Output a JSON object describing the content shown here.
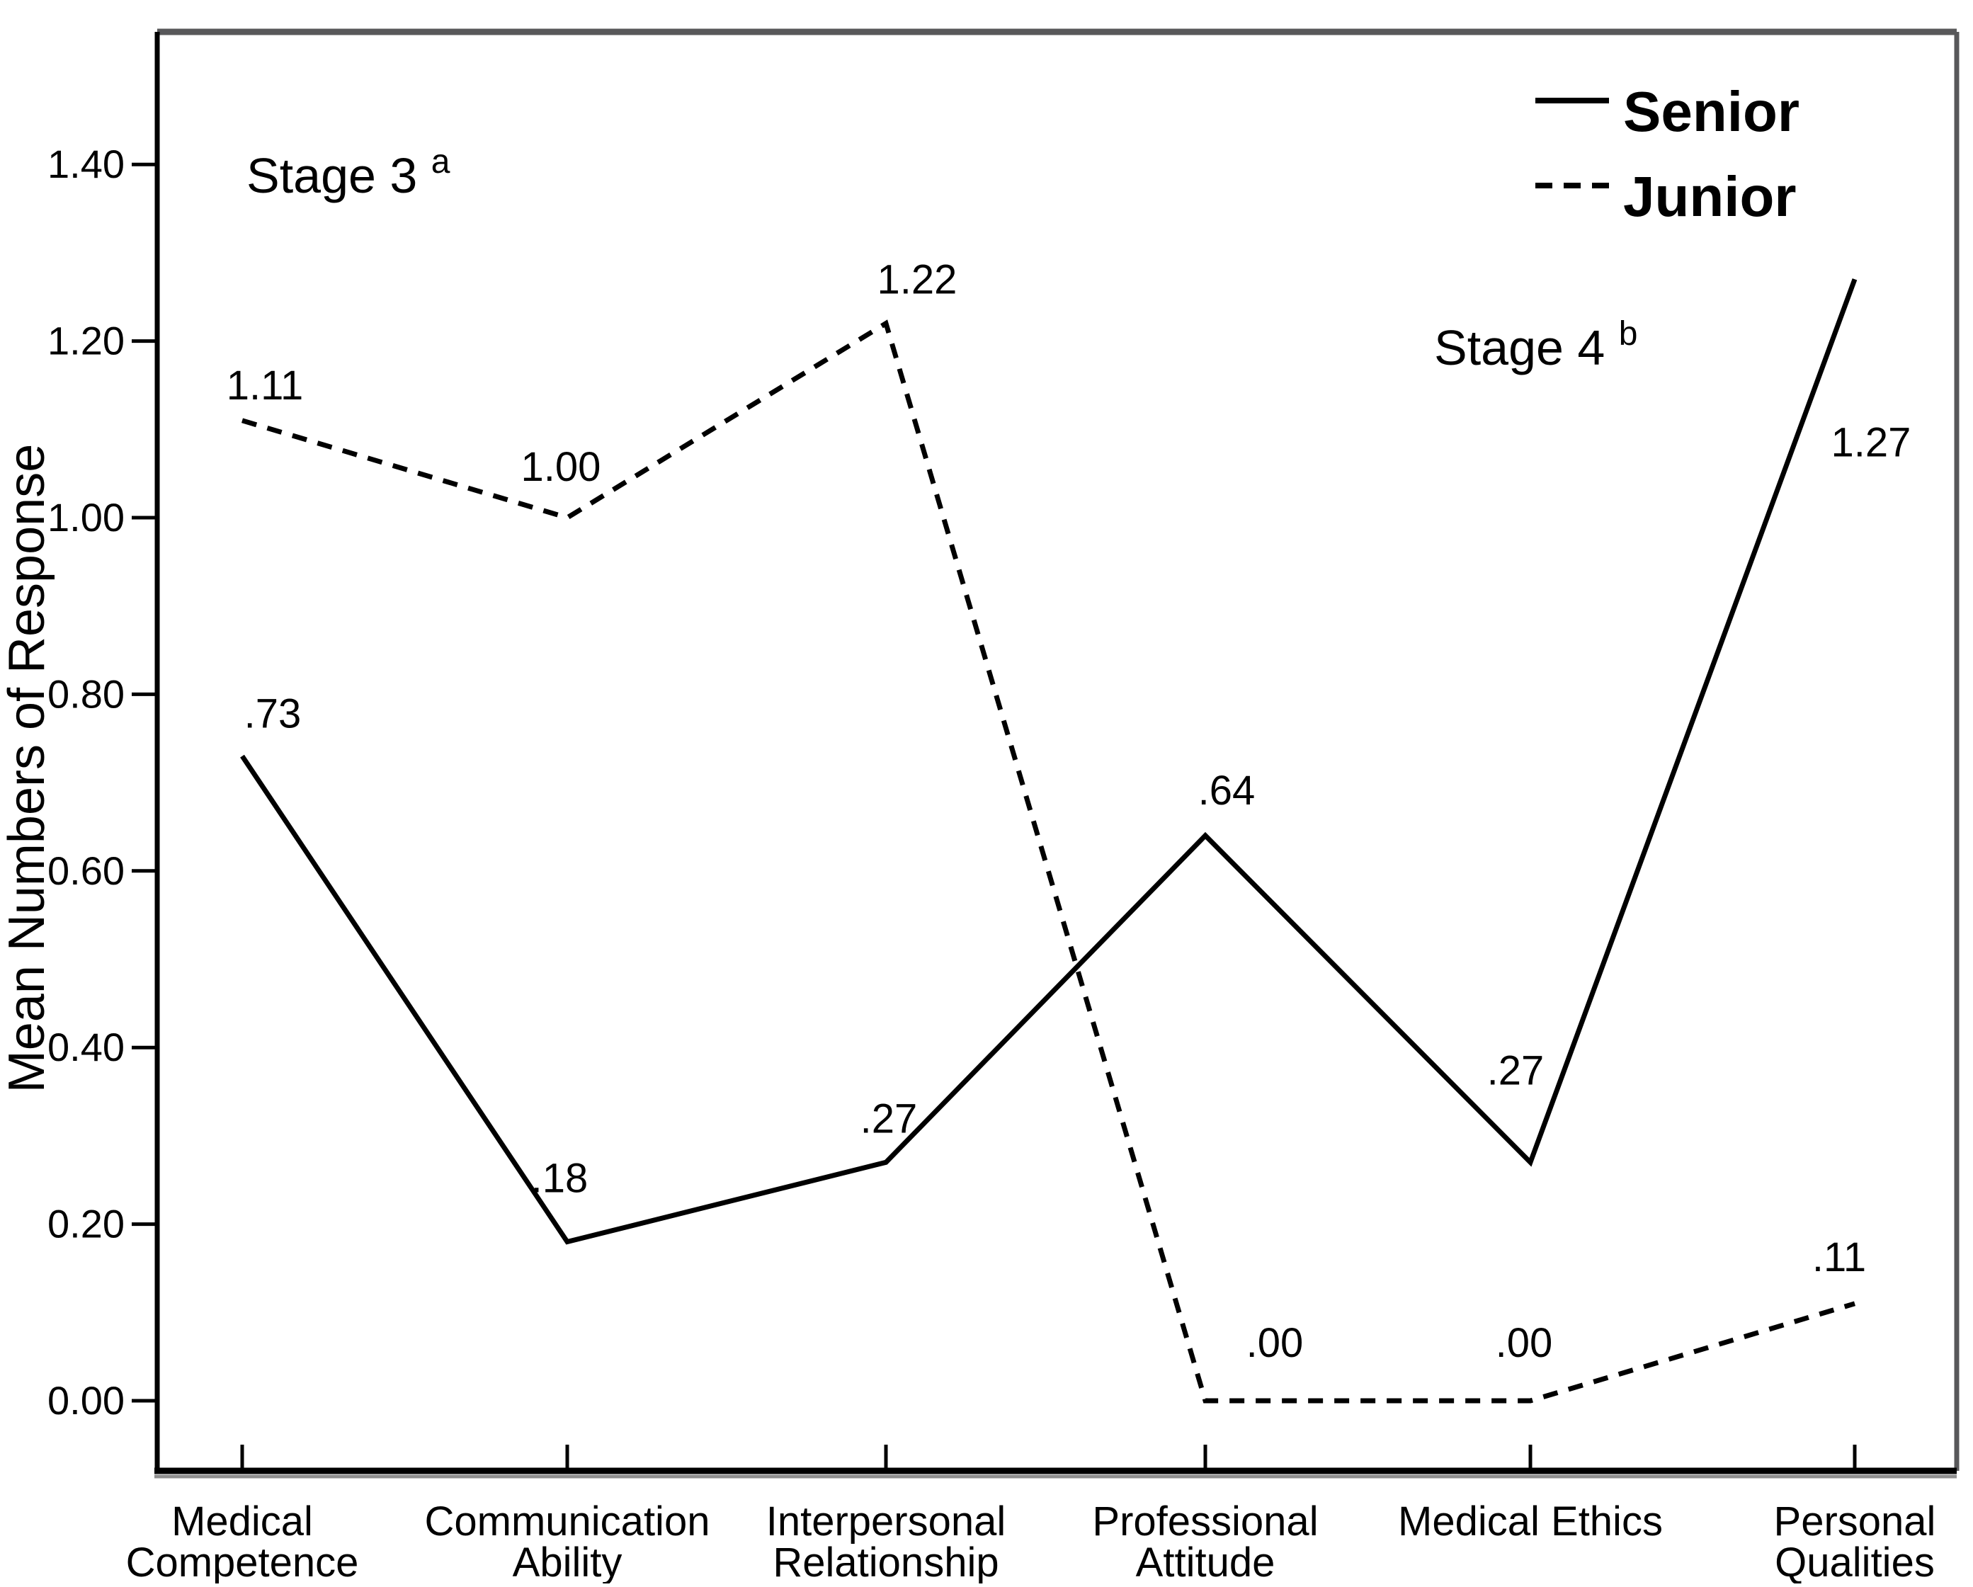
{
  "colors": {
    "background": "#ffffff",
    "ink": "#000000",
    "frame_gray": "#58585a",
    "axis_shadow_gray": "#8f8f8f"
  },
  "chart_data": {
    "type": "line",
    "title": "",
    "xlabel": "",
    "ylabel": "Mean Numbers of Response",
    "ylim": [
      -0.08,
      1.55
    ],
    "grid": false,
    "y_ticks": [
      {
        "value": 0.0,
        "label": "0.00"
      },
      {
        "value": 0.2,
        "label": "0.20"
      },
      {
        "value": 0.4,
        "label": "0.40"
      },
      {
        "value": 0.6,
        "label": "0.60"
      },
      {
        "value": 0.8,
        "label": "0.80"
      },
      {
        "value": 1.0,
        "label": "1.00"
      },
      {
        "value": 1.2,
        "label": "1.20"
      },
      {
        "value": 1.4,
        "label": "1.40"
      }
    ],
    "categories": [
      {
        "line1": "Medical",
        "line2": "Competence"
      },
      {
        "line1": "Communication",
        "line2": "Ability"
      },
      {
        "line1": "Interpersonal",
        "line2": "Relationship"
      },
      {
        "line1": "Professional",
        "line2": "Attitude"
      },
      {
        "line1": "Medical Ethics",
        "line2": ""
      },
      {
        "line1": "Personal",
        "line2": "Qualities"
      }
    ],
    "series": [
      {
        "name": "Senior",
        "line_style": "solid",
        "color": "#000000",
        "values": [
          0.73,
          0.18,
          0.27,
          0.64,
          0.27,
          1.27
        ],
        "point_labels": [
          ".73",
          ".18",
          ".27",
          ".64",
          ".27",
          "1.27"
        ]
      },
      {
        "name": "Junior",
        "line_style": "dashed",
        "color": "#000000",
        "values": [
          1.11,
          1.0,
          1.22,
          0.0,
          0.0,
          0.11
        ],
        "point_labels": [
          "1.11",
          "1.00",
          "1.22",
          ".00",
          ".00",
          ".11"
        ]
      }
    ],
    "annotations": [
      {
        "text": "Stage 3",
        "superscript": "a"
      },
      {
        "text": "Stage 4",
        "superscript": "b"
      }
    ],
    "legend": {
      "position": "top-right",
      "entries": [
        {
          "label": "Senior",
          "line_style": "solid"
        },
        {
          "label": "Junior",
          "line_style": "dashed"
        }
      ]
    }
  }
}
